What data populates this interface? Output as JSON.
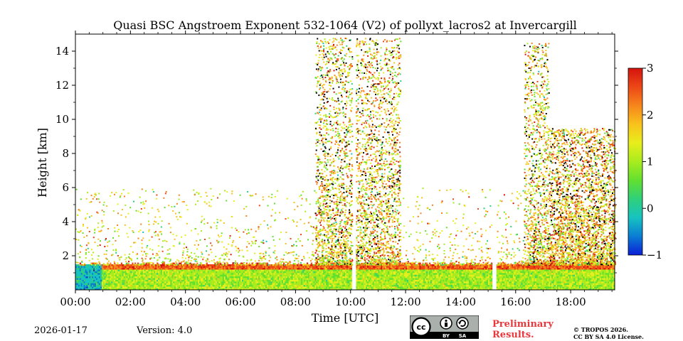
{
  "chart_data": {
    "type": "heatmap",
    "title": "Quasi BSC Angstroem Exponent 532-1064 (V2) of pollyxt_lacros2 at Invercargill",
    "xlabel": "Time [UTC]",
    "ylabel": "Height [km]",
    "x_range_hours": [
      0,
      19.6
    ],
    "ylim_km": [
      0,
      15
    ],
    "x_ticks": [
      "00:00",
      "02:00",
      "04:00",
      "06:00",
      "08:00",
      "10:00",
      "12:00",
      "14:00",
      "16:00",
      "18:00"
    ],
    "y_ticks": [
      "2",
      "4",
      "6",
      "8",
      "10",
      "12",
      "14"
    ],
    "colorbar": {
      "min": -1,
      "max": 3,
      "ticks": [
        "−1",
        "0",
        "1",
        "2",
        "3"
      ],
      "colors": [
        "#0b1fd6",
        "#0a7cd4",
        "#16c3c0",
        "#2fd07a",
        "#62e02f",
        "#a8ec1e",
        "#e8ee1c",
        "#f8c21c",
        "#f6861c",
        "#ec4716",
        "#d4140e"
      ]
    },
    "data_gaps_hours": [
      [
        10.05,
        10.18
      ],
      [
        15.12,
        15.3
      ]
    ],
    "layers": [
      {
        "name": "boundary layer",
        "height_km": [
          0,
          1.2
        ],
        "value": 1.0
      },
      {
        "name": "high-value boundary-layer top",
        "height_km": [
          1.2,
          1.55
        ],
        "value": 2.5
      },
      {
        "name": "low-value near-surface plume",
        "time_hours": [
          0,
          0.95
        ],
        "height_km": [
          0,
          1.5
        ],
        "value": -0.2
      }
    ],
    "noisy_columns": [
      {
        "time_hours": [
          8.7,
          10.05
        ],
        "height_km": [
          1.5,
          14.8
        ],
        "value_mean": 1.6
      },
      {
        "time_hours": [
          10.18,
          11.8
        ],
        "height_km": [
          1.5,
          14.8
        ],
        "value_mean": 1.7
      },
      {
        "time_hours": [
          16.3,
          17.2
        ],
        "height_km": [
          1.5,
          14.5
        ],
        "value_mean": 1.6
      },
      {
        "time_hours": [
          17.2,
          19.6
        ],
        "height_km": [
          1.5,
          9.5
        ],
        "value_mean": 1.8
      }
    ]
  },
  "footer": {
    "date": "2026-01-17",
    "version": "Version: 4.0",
    "preliminary_line1": "Preliminary",
    "preliminary_line2": "Results.",
    "copyright_line1": "© TROPOS 2026.",
    "copyright_line2": "CC BY SA 4.0 License.",
    "cc_badge_labels": [
      "cc",
      "BY",
      "SA"
    ]
  }
}
